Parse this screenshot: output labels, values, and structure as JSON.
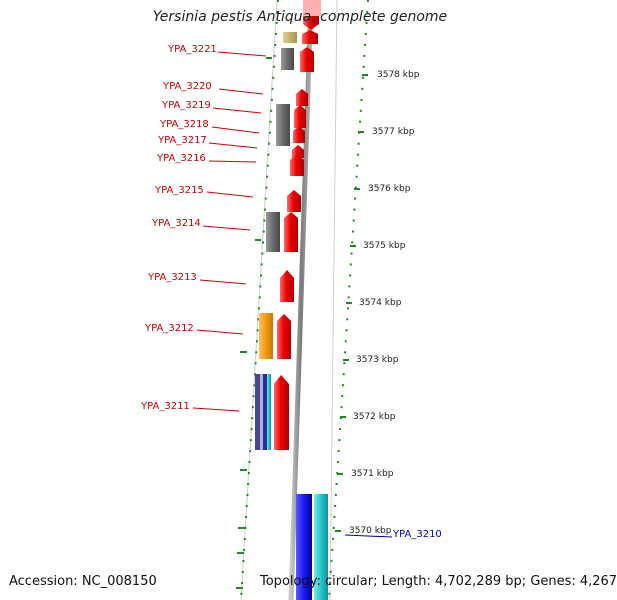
{
  "title": "Yersinia pestis Antiqua, complete genome",
  "footer": {
    "accession": "Accession: NC_008150",
    "summary": "Topology: circular; Length: 4,702,289 bp; Genes: 4,267"
  },
  "colors": {
    "forward_cds": "#ee0000",
    "reverse_gray": "#6b6b6b",
    "reverse_orange": "#f09a10",
    "reverse_tan": "#c8b46a",
    "blue_gene": "#1a1aee",
    "cyan_gene": "#22c8cc",
    "label_red": "#cc0000",
    "label_blue": "#0000aa",
    "dotted_track": "#1a8a1a",
    "backbone": "#8a8a8a"
  },
  "scale": {
    "unit": "kbp",
    "ticks": [
      "3578 kbp",
      "3577 kbp",
      "3576 kbp",
      "3575 kbp",
      "3574 kbp",
      "3573 kbp",
      "3572 kbp",
      "3571 kbp",
      "3570 kbp"
    ]
  },
  "gene_labels": [
    {
      "text": "YPA_3221",
      "color": "red"
    },
    {
      "text": "YPA_3220",
      "color": "red"
    },
    {
      "text": "YPA_3219",
      "color": "red"
    },
    {
      "text": "YPA_3218",
      "color": "red"
    },
    {
      "text": "YPA_3217",
      "color": "red"
    },
    {
      "text": "YPA_3216",
      "color": "red"
    },
    {
      "text": "YPA_3215",
      "color": "red"
    },
    {
      "text": "YPA_3214",
      "color": "red"
    },
    {
      "text": "YPA_3213",
      "color": "red"
    },
    {
      "text": "YPA_3212",
      "color": "red"
    },
    {
      "text": "YPA_3211",
      "color": "red"
    },
    {
      "text": "YPA_3210",
      "color": "blue"
    }
  ]
}
